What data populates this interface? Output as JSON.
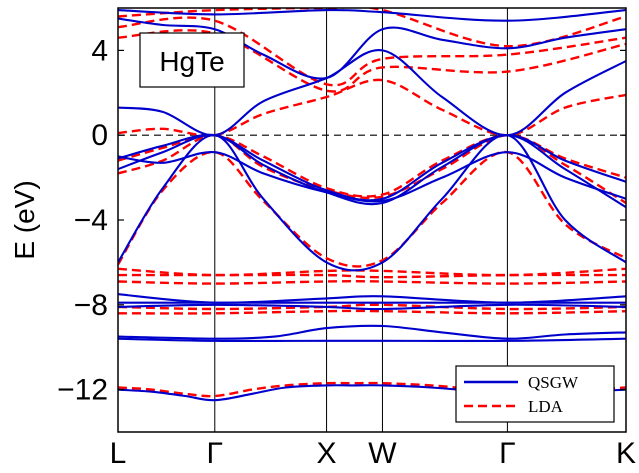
{
  "chart_data": {
    "type": "line",
    "title": "",
    "material_label": "HgTe",
    "xlabel": "",
    "ylabel": "E (eV)",
    "ylim": [
      -14,
      6
    ],
    "yticks": [
      4,
      0,
      -4,
      -8,
      -12
    ],
    "ytick_labels": [
      "4",
      "0",
      "−4",
      "−8",
      "−12"
    ],
    "k_points": [
      {
        "label": "L",
        "x": 0.0
      },
      {
        "label": "Γ",
        "x": 0.866
      },
      {
        "label": "X",
        "x": 1.866
      },
      {
        "label": "W",
        "x": 2.366
      },
      {
        "label": "Γ",
        "x": 3.484
      },
      {
        "label": "K",
        "x": 4.545
      }
    ],
    "fermi_level": 0,
    "legend": {
      "position": "bottom-right",
      "entries": [
        {
          "name": "QSGW",
          "color": "#0000cc",
          "style": "solid"
        },
        {
          "name": "LDA",
          "color": "#ff0000",
          "style": "dashed"
        }
      ]
    },
    "series": [
      {
        "name": "QSGW",
        "color": "#0000cc",
        "style": "solid",
        "bands": [
          {
            "x": [
              0,
              0.3,
              0.6,
              0.866,
              1.2,
              1.5,
              1.866,
              2.1,
              2.366,
              2.8,
              3.2,
              3.484,
              3.8,
              4.2,
              4.545
            ],
            "y": [
              -12.0,
              -12.1,
              -12.3,
              -12.5,
              -12.2,
              -11.9,
              -11.8,
              -11.8,
              -11.8,
              -11.9,
              -12.1,
              -12.4,
              -12.3,
              -12.1,
              -12.0
            ]
          },
          {
            "x": [
              0,
              0.866,
              1.866,
              2.366,
              3.484,
              4.545
            ],
            "y": [
              -9.6,
              -9.7,
              -9.7,
              -9.7,
              -9.7,
              -9.6
            ]
          },
          {
            "x": [
              0,
              0.866,
              1.4,
              1.866,
              2.366,
              2.9,
              3.484,
              4.0,
              4.545
            ],
            "y": [
              -9.5,
              -9.6,
              -9.5,
              -9.1,
              -9.0,
              -9.3,
              -9.6,
              -9.4,
              -9.3
            ]
          },
          {
            "x": [
              0,
              0.866,
              1.866,
              2.366,
              3.484,
              4.545
            ],
            "y": [
              -8.1,
              -8.0,
              -8.1,
              -8.2,
              -8.0,
              -8.1
            ]
          },
          {
            "x": [
              0,
              0.866,
              1.866,
              2.366,
              3.484,
              4.545
            ],
            "y": [
              -7.9,
              -7.9,
              -7.9,
              -7.9,
              -7.9,
              -7.9
            ]
          },
          {
            "x": [
              0,
              0.866,
              1.866,
              2.366,
              3.484,
              4.545
            ],
            "y": [
              -7.5,
              -7.9,
              -7.7,
              -7.6,
              -7.9,
              -7.6
            ]
          },
          {
            "x": [
              0,
              0.4,
              0.866,
              1.3,
              1.866,
              2.366,
              2.9,
              3.484,
              4.0,
              4.545
            ],
            "y": [
              -6.0,
              -2.5,
              0.0,
              -3.0,
              -6.0,
              -6.0,
              -3.0,
              0.0,
              -4.0,
              -6.0
            ]
          },
          {
            "x": [
              0,
              0.4,
              0.866,
              1.3,
              1.866,
              2.366,
              2.9,
              3.484,
              4.0,
              4.545
            ],
            "y": [
              -1.6,
              -0.8,
              0.0,
              -1.4,
              -2.7,
              -3.2,
              -1.5,
              0.0,
              -1.6,
              -3.4
            ]
          },
          {
            "x": [
              0,
              0.4,
              0.866,
              1.3,
              1.866,
              2.366,
              2.9,
              3.484,
              4.0,
              4.545
            ],
            "y": [
              -1.1,
              -0.5,
              0.0,
              -1.2,
              -2.6,
              -3.0,
              -1.3,
              0.0,
              -1.2,
              -2.2
            ]
          },
          {
            "x": [
              0,
              0.4,
              0.866,
              1.3,
              1.866,
              2.366,
              2.9,
              3.484,
              4.0,
              4.545
            ],
            "y": [
              -1.0,
              -1.3,
              -0.8,
              -1.8,
              -2.7,
              -3.1,
              -2.0,
              -0.8,
              -2.0,
              -3.0
            ]
          },
          {
            "x": [
              0,
              0.4,
              0.866,
              1.3,
              1.866,
              2.366,
              2.9,
              3.484,
              4.0,
              4.545
            ],
            "y": [
              1.3,
              1.1,
              0.0,
              1.6,
              2.7,
              4.0,
              1.8,
              0.0,
              2.0,
              3.5
            ]
          },
          {
            "x": [
              0,
              0.4,
              0.866,
              1.3,
              1.866,
              2.366,
              2.9,
              3.484,
              4.0,
              4.545
            ],
            "y": [
              5.5,
              5.2,
              5.0,
              3.8,
              2.7,
              5.0,
              4.5,
              4.1,
              4.6,
              5.0
            ]
          },
          {
            "x": [
              0,
              0.866,
              1.866,
              2.366,
              3.484,
              4.545
            ],
            "y": [
              5.9,
              5.7,
              5.9,
              5.8,
              5.4,
              5.9
            ]
          }
        ]
      },
      {
        "name": "LDA",
        "color": "#ff0000",
        "style": "dashed",
        "bands": [
          {
            "x": [
              0,
              0.3,
              0.6,
              0.866,
              1.2,
              1.5,
              1.866,
              2.1,
              2.366,
              2.8,
              3.2,
              3.484,
              3.8,
              4.2,
              4.545
            ],
            "y": [
              -11.9,
              -12.0,
              -12.2,
              -12.3,
              -12.0,
              -11.8,
              -11.7,
              -11.7,
              -11.7,
              -11.8,
              -12.0,
              -12.2,
              -12.1,
              -12.0,
              -11.9
            ]
          },
          {
            "x": [
              0,
              0.866,
              1.866,
              2.366,
              3.484,
              4.545
            ],
            "y": [
              -8.4,
              -8.4,
              -8.3,
              -8.3,
              -8.4,
              -8.3
            ]
          },
          {
            "x": [
              0,
              0.866,
              1.866,
              2.366,
              3.484,
              4.545
            ],
            "y": [
              -8.1,
              -8.2,
              -8.1,
              -8.0,
              -8.2,
              -8.1
            ]
          },
          {
            "x": [
              0,
              0.866,
              1.866,
              2.366,
              3.484,
              4.545
            ],
            "y": [
              -6.9,
              -7.0,
              -6.9,
              -6.9,
              -7.0,
              -6.9
            ]
          },
          {
            "x": [
              0,
              0.866,
              1.866,
              2.366,
              3.484,
              4.545
            ],
            "y": [
              -6.6,
              -6.6,
              -6.6,
              -6.7,
              -6.6,
              -6.6
            ]
          },
          {
            "x": [
              0,
              0.866,
              1.866,
              2.366,
              3.484,
              4.545
            ],
            "y": [
              -6.3,
              -6.6,
              -6.4,
              -6.4,
              -6.6,
              -6.3
            ]
          },
          {
            "x": [
              0,
              0.4,
              0.866,
              1.3,
              1.866,
              2.366,
              2.9,
              3.484,
              4.0,
              4.545
            ],
            "y": [
              -6.1,
              -2.6,
              -0.8,
              -3.1,
              -5.8,
              -5.9,
              -3.2,
              -0.8,
              -4.2,
              -5.8
            ]
          },
          {
            "x": [
              0,
              0.4,
              0.866,
              1.3,
              1.866,
              2.366,
              2.9,
              3.484,
              4.0,
              4.545
            ],
            "y": [
              -1.8,
              -1.2,
              0.0,
              -1.5,
              -2.6,
              -2.9,
              -1.6,
              0.0,
              -1.4,
              -3.2
            ]
          },
          {
            "x": [
              0,
              0.4,
              0.866,
              1.3,
              1.866,
              2.366,
              2.9,
              3.484,
              4.0,
              4.545
            ],
            "y": [
              -1.2,
              -0.6,
              0.0,
              -1.0,
              -2.5,
              -2.8,
              -1.2,
              0.0,
              -1.1,
              -2.0
            ]
          },
          {
            "x": [
              0,
              0.4,
              0.866,
              1.3,
              1.866,
              2.366,
              2.9,
              3.484,
              4.0,
              4.545
            ],
            "y": [
              0.1,
              0.3,
              0.0,
              1.0,
              1.8,
              2.6,
              1.2,
              0.0,
              1.3,
              1.9
            ]
          },
          {
            "x": [
              0,
              0.866,
              1.866,
              2.366,
              3.484,
              4.545
            ],
            "y": [
              4.6,
              4.8,
              2.1,
              3.2,
              3.0,
              4.3
            ]
          },
          {
            "x": [
              0,
              0.866,
              1.866,
              2.366,
              3.484,
              4.545
            ],
            "y": [
              5.1,
              5.4,
              2.4,
              3.6,
              3.8,
              4.6
            ]
          },
          {
            "x": [
              0,
              0.866,
              1.866,
              2.366,
              3.484,
              4.545
            ],
            "y": [
              5.6,
              5.9,
              6.0,
              5.9,
              4.2,
              5.6
            ]
          }
        ]
      }
    ]
  }
}
